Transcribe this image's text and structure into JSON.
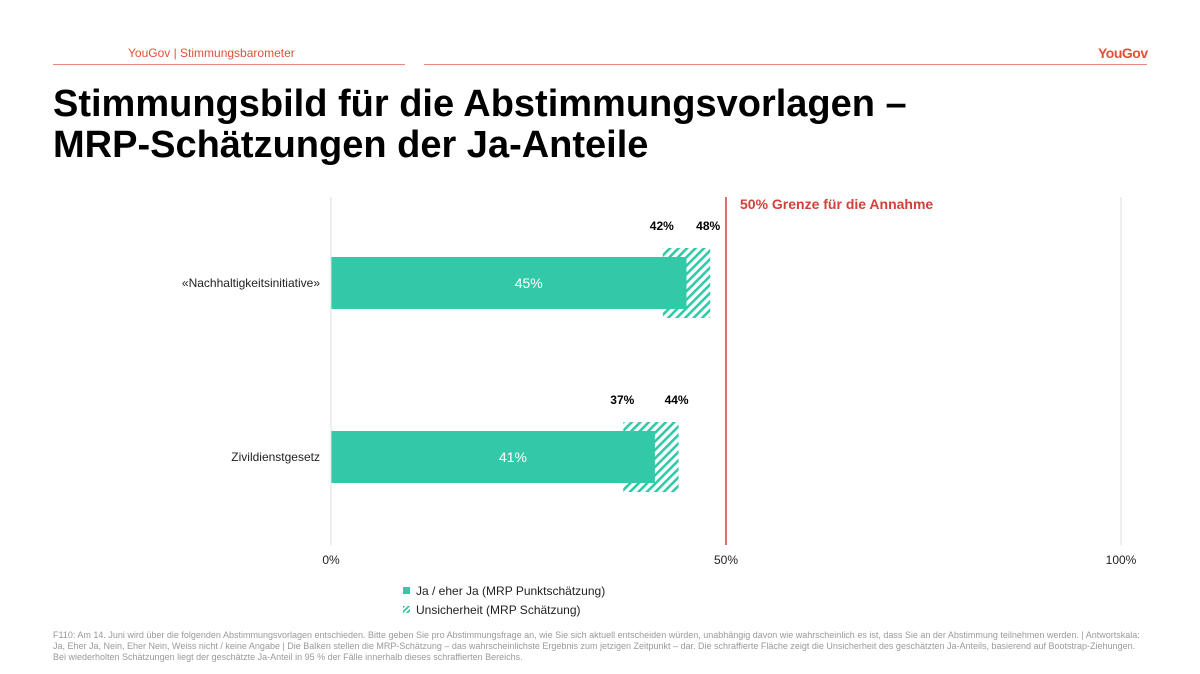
{
  "header": {
    "left": "YouGov | Stimmungsbarometer",
    "brand": "YouGov"
  },
  "title": {
    "line1": "Stimmungsbild für die Abstimmungsvorlagen –",
    "line2": "MRP-Schätzungen der Ja-Anteile"
  },
  "legend": {
    "solid": "Ja / eher Ja (MRP Punktschätzung)",
    "hatch": "Unsicherheit (MRP Schätzung)"
  },
  "footnote": "F110: Am 14. Juni wird über die folgenden Abstimmungsvorlagen entschieden. Bitte geben Sie pro Abstimmungsfrage an, wie Sie sich aktuell entscheiden würden, unabhängig davon wie wahrscheinlich es ist, dass Sie an der Abstimmung teilnehmen werden. | Antwortskala: Ja, Eher Ja, Nein, Eher Nein, Weiss nicht / keine Angabe | Die Balken stellen die MRP-Schätzung – das wahrscheinlichste Ergebnis zum jetzigen Zeitpunkt – dar. Die schraffierte Fläche zeigt die Unsicherheit des geschätzten Ja-Anteils, basierend auf Bootstrap-Ziehungen. Bei wiederholten Schätzungen liegt der geschätzte Ja-Anteil in 95 % der Fälle innerhalb dieses schraffierten Bereichs.",
  "colors": {
    "bar": "#33c9a8",
    "threshold": "#d2403a",
    "accent": "#e0503a",
    "grid": "#dddddd"
  },
  "chart_data": {
    "type": "bar",
    "orientation": "horizontal",
    "categories": [
      "«Nachhaltigkeitsinitiative»",
      "Zivildienstgesetz"
    ],
    "series": [
      {
        "name": "Ja / eher Ja (MRP Punktschätzung)",
        "values": [
          45,
          41
        ],
        "labels": [
          "45%",
          "41%"
        ]
      },
      {
        "name": "Unsicherheit (MRP Schätzung)",
        "low": [
          42,
          37
        ],
        "high": [
          48,
          44
        ],
        "low_labels": [
          "42%",
          "37%"
        ],
        "high_labels": [
          "48%",
          "44%"
        ]
      }
    ],
    "xlim": [
      0,
      100
    ],
    "x_ticks": [
      0,
      50,
      100
    ],
    "x_tick_labels": [
      "0%",
      "50%",
      "100%"
    ],
    "threshold": {
      "value": 50,
      "label": "50% Grenze für die Annahme"
    },
    "grid": true,
    "legend_position": "bottom"
  }
}
